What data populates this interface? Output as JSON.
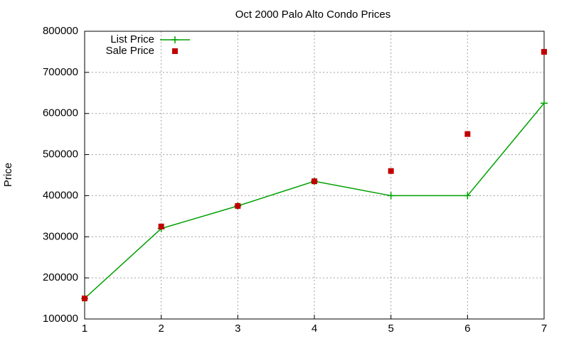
{
  "chart_data": {
    "type": "line",
    "title": "Oct 2000 Palo Alto Condo Prices",
    "y_label": "Price",
    "x": [
      1,
      2,
      3,
      4,
      5,
      6,
      7
    ],
    "series": [
      {
        "name": "List Price",
        "color": "#00a000",
        "mode": "lines+points",
        "values": [
          150000,
          320000,
          375000,
          435000,
          400000,
          400000,
          625000
        ]
      },
      {
        "name": "Sale Price",
        "color": "#c00000",
        "mode": "points",
        "values": [
          150000,
          325000,
          375000,
          435000,
          460000,
          550000,
          750000
        ]
      }
    ],
    "xlim": [
      1,
      7
    ],
    "xticks": [
      1,
      2,
      3,
      4,
      5,
      6,
      7
    ],
    "ylim": [
      100000,
      800000
    ],
    "yticks": [
      100000,
      200000,
      300000,
      400000,
      500000,
      600000,
      700000,
      800000
    ],
    "grid": true,
    "legend": "top-left"
  }
}
